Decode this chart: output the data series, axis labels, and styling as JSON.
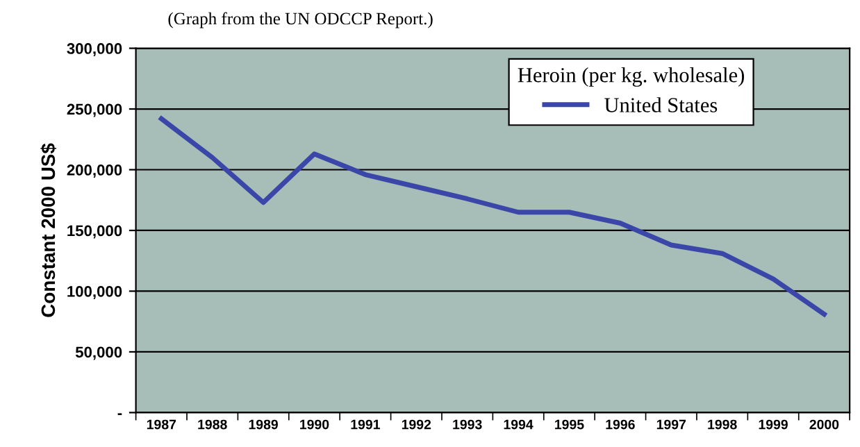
{
  "chart_data": {
    "type": "line",
    "annotations": [
      "(Graph from the UN ODCCP Report.)"
    ],
    "ylabel": "Constant 2000 US$",
    "legend_title": "Heroin (per kg. wholesale)",
    "categories": [
      "1987",
      "1988",
      "1989",
      "1990",
      "1991",
      "1992",
      "1993",
      "1994",
      "1995",
      "1996",
      "1997",
      "1998",
      "1999",
      "2000"
    ],
    "series": [
      {
        "name": "United States",
        "color": "#3a46a8",
        "values": [
          242000,
          210000,
          173000,
          213000,
          196000,
          186000,
          176000,
          165000,
          165000,
          156000,
          138000,
          131000,
          110000,
          81000
        ]
      }
    ],
    "ylim": [
      0,
      300000
    ],
    "yticks": [
      {
        "value": 0,
        "label": "-"
      },
      {
        "value": 50000,
        "label": "50,000"
      },
      {
        "value": 100000,
        "label": "100,000"
      },
      {
        "value": 150000,
        "label": "150,000"
      },
      {
        "value": 200000,
        "label": "200,000"
      },
      {
        "value": 250000,
        "label": "250,000"
      },
      {
        "value": 300000,
        "label": "300,000"
      }
    ],
    "grid": "y",
    "legend": "top right",
    "marker": "none",
    "line_style": "solid"
  }
}
